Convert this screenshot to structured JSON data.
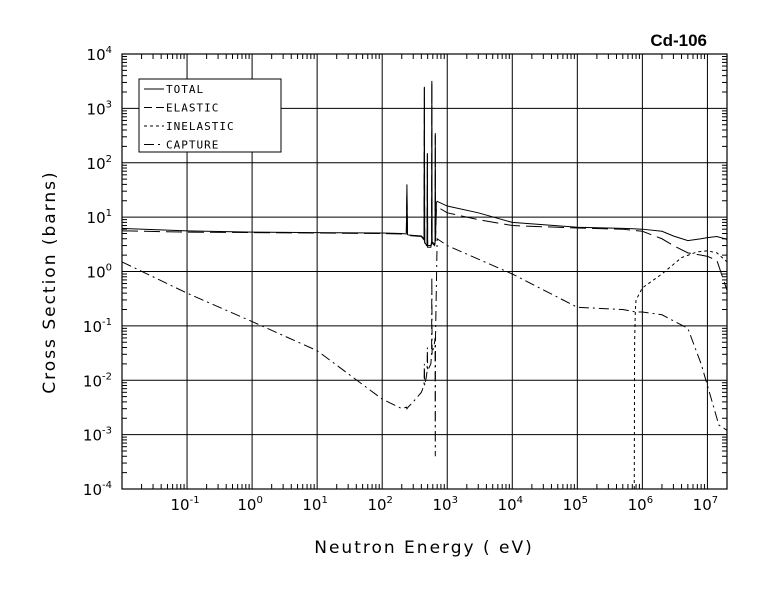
{
  "chart_data": {
    "type": "line",
    "title": "Cd-106",
    "xlabel": "Neutron Energy ( eV)",
    "ylabel": "Cross Section (barns)",
    "x_scale": "log",
    "y_scale": "log",
    "xlim": [
      0.01,
      20000000
    ],
    "ylim": [
      0.0001,
      10000
    ],
    "grid": true,
    "legend_position": "top-left",
    "x_ticks": [
      {
        "base": "10",
        "exp": "-1",
        "value": 0.1
      },
      {
        "base": "10",
        "exp": "0",
        "value": 1
      },
      {
        "base": "10",
        "exp": "1",
        "value": 10
      },
      {
        "base": "10",
        "exp": "2",
        "value": 100
      },
      {
        "base": "10",
        "exp": "3",
        "value": 1000
      },
      {
        "base": "10",
        "exp": "4",
        "value": 10000
      },
      {
        "base": "10",
        "exp": "5",
        "value": 100000
      },
      {
        "base": "10",
        "exp": "6",
        "value": 1000000
      },
      {
        "base": "10",
        "exp": "7",
        "value": 10000000
      }
    ],
    "y_ticks": [
      {
        "base": "10",
        "exp": "-4",
        "value": 0.0001
      },
      {
        "base": "10",
        "exp": "-3",
        "value": 0.001
      },
      {
        "base": "10",
        "exp": "-2",
        "value": 0.01
      },
      {
        "base": "10",
        "exp": "-1",
        "value": 0.1
      },
      {
        "base": "10",
        "exp": "0",
        "value": 1
      },
      {
        "base": "10",
        "exp": "1",
        "value": 10
      },
      {
        "base": "10",
        "exp": "2",
        "value": 100
      },
      {
        "base": "10",
        "exp": "3",
        "value": 1000
      },
      {
        "base": "10",
        "exp": "4",
        "value": 10000
      }
    ],
    "series": [
      {
        "name": "TOTAL",
        "dash": "solid",
        "x": [
          0.01,
          0.1,
          1,
          10,
          100,
          200,
          235,
          240,
          245,
          250,
          400,
          440,
          445,
          450,
          480,
          490,
          495,
          500,
          560,
          575,
          580,
          585,
          640,
          650,
          655,
          660,
          680,
          690,
          700,
          1000,
          3000,
          10000,
          100000,
          500000,
          1000000,
          2000000,
          3000000,
          5000000,
          8000000,
          10000000,
          14000000,
          20000000
        ],
        "y": [
          6.2,
          5.6,
          5.3,
          5.2,
          5.1,
          5.0,
          4.9,
          40.0,
          4.8,
          4.7,
          4.5,
          4.0,
          2500,
          3.5,
          3.0,
          3.2,
          150,
          3.0,
          3.0,
          3.5,
          3200,
          3.5,
          3.2,
          3.5,
          350,
          3.8,
          18.0,
          19.0,
          19.5,
          16.0,
          12.0,
          8.0,
          6.5,
          6.2,
          6.0,
          5.5,
          4.5,
          3.7,
          4.0,
          4.2,
          4.4,
          3.9
        ]
      },
      {
        "name": "ELASTIC",
        "dash": "long",
        "x": [
          0.01,
          0.1,
          1,
          10,
          100,
          200,
          235,
          240,
          245,
          250,
          400,
          440,
          445,
          450,
          480,
          490,
          495,
          500,
          560,
          575,
          580,
          585,
          640,
          650,
          655,
          660,
          680,
          690,
          700,
          1000,
          3000,
          10000,
          100000,
          500000,
          1000000,
          2000000,
          3000000,
          5000000,
          8000000,
          10000000,
          14000000,
          20000000
        ],
        "y": [
          5.6,
          5.3,
          5.2,
          5.1,
          5.0,
          4.9,
          4.8,
          30.0,
          4.7,
          4.6,
          4.4,
          3.8,
          2400,
          3.3,
          2.8,
          3.0,
          140,
          2.8,
          2.8,
          3.3,
          3000,
          3.3,
          3.0,
          3.3,
          320,
          3.6,
          14.0,
          15.0,
          15.5,
          12.0,
          9.0,
          7.0,
          6.3,
          6.0,
          5.5,
          4.0,
          3.0,
          2.2,
          2.0,
          1.9,
          1.6,
          0.45
        ]
      },
      {
        "name": "INELASTIC",
        "dash": "short",
        "x": [
          750000,
          760000,
          780000,
          800000,
          1000000,
          2000000,
          4000000,
          7000000,
          10000000,
          14000000,
          20000000
        ],
        "y": [
          0.0001,
          0.05,
          0.2,
          0.3,
          0.5,
          0.9,
          1.8,
          2.3,
          2.4,
          2.2,
          1.5
        ]
      },
      {
        "name": "CAPTURE",
        "dash": "dashdot",
        "x": [
          0.01,
          0.1,
          1,
          10,
          100,
          200,
          235,
          240,
          250,
          300,
          400,
          440,
          445,
          450,
          480,
          490,
          495,
          500,
          560,
          575,
          580,
          585,
          640,
          650,
          655,
          660,
          700,
          1000,
          10000,
          100000,
          500000,
          800000,
          1000000,
          2000000,
          5000000,
          8000000,
          10000000,
          15000000,
          20000000
        ],
        "y": [
          1.5,
          0.4,
          0.12,
          0.035,
          0.0045,
          0.003,
          0.0032,
          0.003,
          0.0032,
          0.004,
          0.006,
          0.008,
          0.02,
          0.008,
          0.012,
          0.015,
          0.04,
          0.015,
          0.02,
          0.03,
          0.8,
          0.03,
          0.05,
          0.06,
          0.0004,
          0.06,
          4.0,
          3.0,
          0.9,
          0.22,
          0.2,
          0.18,
          0.18,
          0.16,
          0.09,
          0.02,
          0.008,
          0.0015,
          0.0012
        ]
      }
    ]
  }
}
